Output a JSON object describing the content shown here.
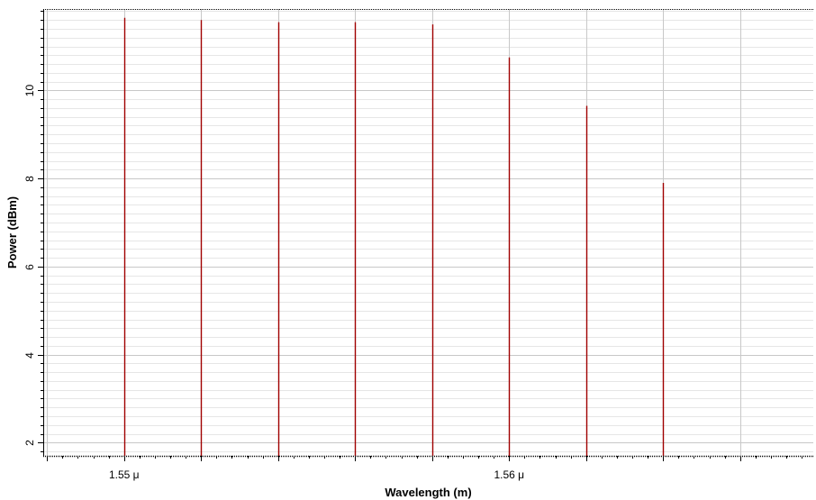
{
  "chart_data": {
    "type": "bar",
    "title": "",
    "xlabel": "Wavelength (m)",
    "ylabel": "Power (dBm)",
    "x_unit_suffix": " μ",
    "xlim": [
      1.5479,
      1.5679
    ],
    "ylim": [
      1.7,
      11.85
    ],
    "x_ticks": [
      {
        "value": 1.55,
        "label": "1.55 μ"
      },
      {
        "value": 1.56,
        "label": "1.56 μ"
      }
    ],
    "y_ticks": [
      {
        "value": 2,
        "label": "2"
      },
      {
        "value": 4,
        "label": "4"
      },
      {
        "value": 6,
        "label": "6"
      },
      {
        "value": 8,
        "label": "8"
      },
      {
        "value": 10,
        "label": "10"
      }
    ],
    "x_major_grid_step": 0.002,
    "x_minor_tick_step": 0.0004,
    "y_minor_grid_step": 0.2,
    "grid": true,
    "series": [
      {
        "x": [
          1.55,
          1.552,
          1.554,
          1.556,
          1.558,
          1.56,
          1.562,
          1.564
        ],
        "values": [
          11.65,
          11.6,
          11.55,
          11.55,
          11.5,
          10.75,
          9.65,
          7.9
        ]
      }
    ],
    "colors": {
      "line": "#a00000",
      "major_grid": "#c8c8c8",
      "minor_grid": "#e6e6e6",
      "axis": "#000000"
    }
  }
}
